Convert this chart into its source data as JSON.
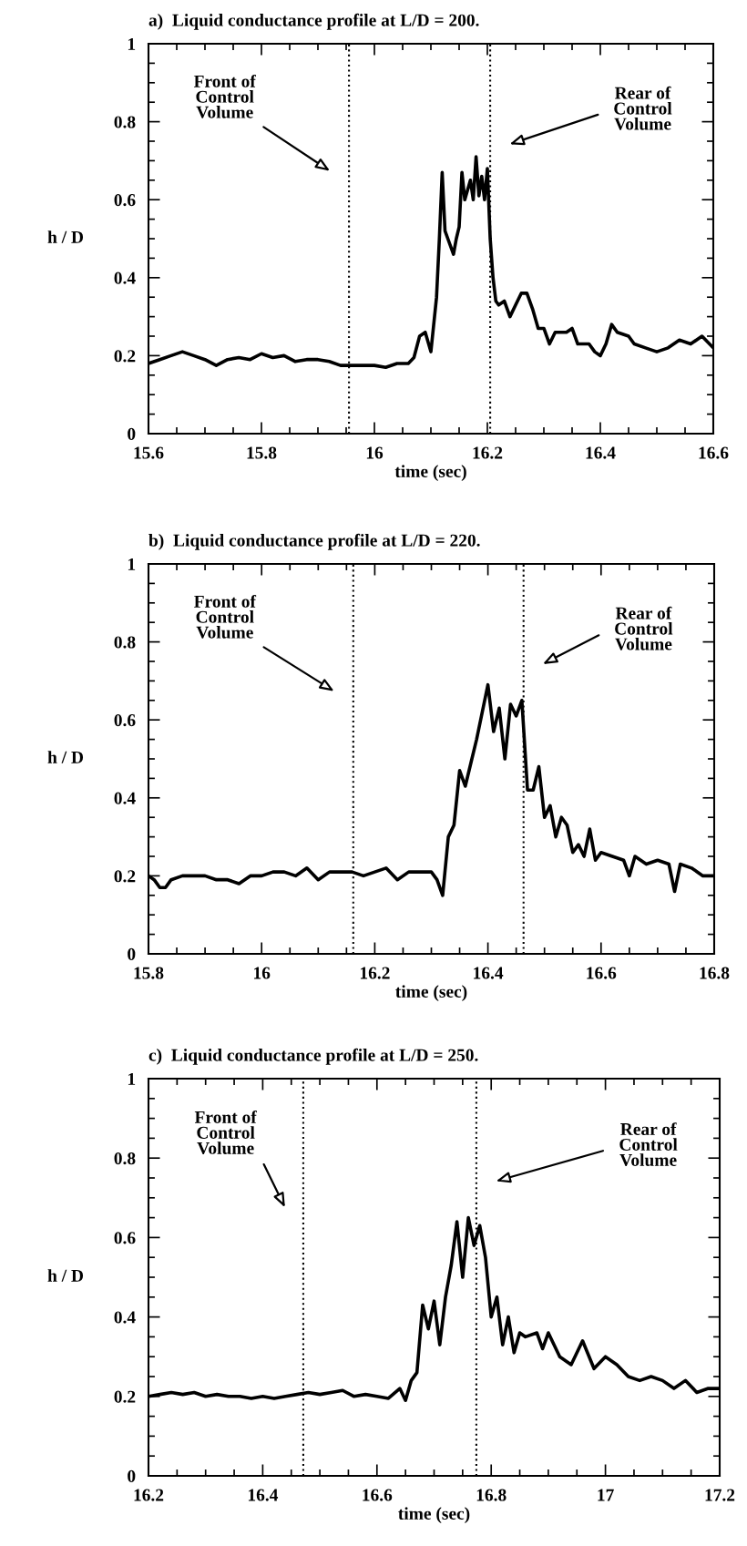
{
  "chart_data": [
    {
      "type": "line",
      "title": "a)  Liquid conductance profile at L/D = 200.",
      "xlabel": "time (sec)",
      "ylabel": "h / D",
      "xlim": [
        15.6,
        16.6
      ],
      "xticks": [
        15.6,
        15.8,
        16,
        16.2,
        16.4,
        16.6
      ],
      "ylim": [
        0,
        1
      ],
      "yticks": [
        0,
        0.2,
        0.4,
        0.6,
        0.8,
        1
      ],
      "grid": false,
      "ref_lines": [
        {
          "axis": "x",
          "value": 15.955,
          "color": "#000000",
          "line_style": "dotted"
        },
        {
          "axis": "x",
          "value": 16.205,
          "color": "#000000",
          "line_style": "dotted"
        }
      ],
      "annotations": [
        "Front of\nControl\nVolume",
        "Rear of\nControl\nVolume"
      ],
      "series": [
        {
          "color": "#000000",
          "x": [
            15.6,
            15.62,
            15.64,
            15.66,
            15.68,
            15.7,
            15.72,
            15.74,
            15.76,
            15.78,
            15.8,
            15.82,
            15.84,
            15.86,
            15.88,
            15.9,
            15.92,
            15.94,
            15.96,
            15.98,
            16.0,
            16.02,
            16.04,
            16.06,
            16.07,
            16.08,
            16.09,
            16.1,
            16.11,
            16.115,
            16.12,
            16.125,
            16.13,
            16.14,
            16.145,
            16.15,
            16.155,
            16.16,
            16.17,
            16.175,
            16.18,
            16.185,
            16.19,
            16.195,
            16.2,
            16.205,
            16.21,
            16.215,
            16.22,
            16.23,
            16.24,
            16.25,
            16.26,
            16.27,
            16.28,
            16.29,
            16.3,
            16.31,
            16.32,
            16.34,
            16.35,
            16.36,
            16.38,
            16.39,
            16.4,
            16.41,
            16.42,
            16.43,
            16.45,
            16.46,
            16.48,
            16.5,
            16.52,
            16.54,
            16.56,
            16.58,
            16.6
          ],
          "values": [
            0.18,
            0.19,
            0.2,
            0.21,
            0.2,
            0.19,
            0.175,
            0.19,
            0.195,
            0.19,
            0.205,
            0.195,
            0.2,
            0.185,
            0.19,
            0.19,
            0.185,
            0.175,
            0.175,
            0.175,
            0.175,
            0.17,
            0.18,
            0.18,
            0.195,
            0.25,
            0.26,
            0.21,
            0.35,
            0.5,
            0.67,
            0.52,
            0.5,
            0.46,
            0.5,
            0.53,
            0.67,
            0.6,
            0.65,
            0.6,
            0.71,
            0.61,
            0.66,
            0.6,
            0.68,
            0.5,
            0.4,
            0.34,
            0.33,
            0.34,
            0.3,
            0.33,
            0.36,
            0.36,
            0.32,
            0.27,
            0.27,
            0.23,
            0.26,
            0.26,
            0.27,
            0.23,
            0.23,
            0.21,
            0.2,
            0.23,
            0.28,
            0.26,
            0.25,
            0.23,
            0.22,
            0.21,
            0.22,
            0.24,
            0.23,
            0.25,
            0.22
          ]
        }
      ]
    },
    {
      "type": "line",
      "title": "b)  Liquid conductance profile at L/D = 220.",
      "xlabel": "time (sec)",
      "ylabel": "h / D",
      "xlim": [
        15.8,
        16.8
      ],
      "xticks": [
        15.8,
        16,
        16.2,
        16.4,
        16.6,
        16.8
      ],
      "ylim": [
        0,
        1
      ],
      "yticks": [
        0,
        0.2,
        0.4,
        0.6,
        0.8,
        1
      ],
      "grid": false,
      "ref_lines": [
        {
          "axis": "x",
          "value": 16.162,
          "color": "#000000",
          "line_style": "dotted"
        },
        {
          "axis": "x",
          "value": 16.463,
          "color": "#000000",
          "line_style": "dotted"
        }
      ],
      "annotations": [
        "Front of\nControl\nVolume",
        "Rear of\nControl\nVolume"
      ],
      "series": [
        {
          "color": "#000000",
          "x": [
            15.8,
            15.81,
            15.82,
            15.83,
            15.84,
            15.86,
            15.88,
            15.9,
            15.92,
            15.94,
            15.96,
            15.98,
            16.0,
            16.02,
            16.04,
            16.06,
            16.08,
            16.1,
            16.12,
            16.14,
            16.16,
            16.18,
            16.2,
            16.22,
            16.24,
            16.26,
            16.28,
            16.3,
            16.31,
            16.32,
            16.33,
            16.34,
            16.35,
            16.36,
            16.37,
            16.38,
            16.39,
            16.4,
            16.41,
            16.42,
            16.43,
            16.44,
            16.45,
            16.46,
            16.47,
            16.48,
            16.49,
            16.5,
            16.51,
            16.52,
            16.53,
            16.54,
            16.55,
            16.56,
            16.57,
            16.58,
            16.59,
            16.6,
            16.62,
            16.64,
            16.65,
            16.66,
            16.68,
            16.7,
            16.72,
            16.73,
            16.74,
            16.76,
            16.78,
            16.8
          ],
          "values": [
            0.2,
            0.19,
            0.17,
            0.17,
            0.19,
            0.2,
            0.2,
            0.2,
            0.19,
            0.19,
            0.18,
            0.2,
            0.2,
            0.21,
            0.21,
            0.2,
            0.22,
            0.19,
            0.21,
            0.21,
            0.21,
            0.2,
            0.21,
            0.22,
            0.19,
            0.21,
            0.21,
            0.21,
            0.19,
            0.15,
            0.3,
            0.33,
            0.47,
            0.43,
            0.49,
            0.55,
            0.62,
            0.69,
            0.57,
            0.63,
            0.5,
            0.64,
            0.61,
            0.65,
            0.42,
            0.42,
            0.48,
            0.35,
            0.38,
            0.3,
            0.35,
            0.33,
            0.26,
            0.28,
            0.25,
            0.32,
            0.24,
            0.26,
            0.25,
            0.24,
            0.2,
            0.25,
            0.23,
            0.24,
            0.23,
            0.16,
            0.23,
            0.22,
            0.2,
            0.2
          ]
        }
      ]
    },
    {
      "type": "line",
      "title": "c)  Liquid conductance profile at L/D = 250.",
      "xlabel": "time (sec)",
      "ylabel": "h / D",
      "xlim": [
        16.2,
        17.2
      ],
      "xticks": [
        16.2,
        16.4,
        16.6,
        16.8,
        17,
        17.2
      ],
      "ylim": [
        0,
        1
      ],
      "yticks": [
        0,
        0.2,
        0.4,
        0.6,
        0.8,
        1
      ],
      "grid": false,
      "ref_lines": [
        {
          "axis": "x",
          "value": 16.471,
          "color": "#000000",
          "line_style": "dotted"
        },
        {
          "axis": "x",
          "value": 16.774,
          "color": "#000000",
          "line_style": "dotted"
        }
      ],
      "annotations": [
        "Front of\nControl\nVolume",
        "Rear of\nControl\nVolume"
      ],
      "series": [
        {
          "color": "#000000",
          "x": [
            16.2,
            16.22,
            16.24,
            16.26,
            16.28,
            16.3,
            16.32,
            16.34,
            16.36,
            16.38,
            16.4,
            16.42,
            16.44,
            16.46,
            16.48,
            16.5,
            16.52,
            16.54,
            16.56,
            16.58,
            16.6,
            16.62,
            16.64,
            16.65,
            16.66,
            16.67,
            16.68,
            16.69,
            16.7,
            16.71,
            16.72,
            16.73,
            16.74,
            16.75,
            16.76,
            16.77,
            16.78,
            16.79,
            16.8,
            16.81,
            16.82,
            16.83,
            16.84,
            16.85,
            16.86,
            16.88,
            16.89,
            16.9,
            16.92,
            16.94,
            16.96,
            16.98,
            17.0,
            17.02,
            17.04,
            17.06,
            17.08,
            17.1,
            17.12,
            17.14,
            17.16,
            17.18,
            17.2
          ],
          "values": [
            0.2,
            0.205,
            0.21,
            0.205,
            0.21,
            0.2,
            0.205,
            0.2,
            0.2,
            0.195,
            0.2,
            0.195,
            0.2,
            0.205,
            0.21,
            0.205,
            0.21,
            0.215,
            0.2,
            0.205,
            0.2,
            0.195,
            0.22,
            0.19,
            0.24,
            0.26,
            0.43,
            0.37,
            0.44,
            0.33,
            0.45,
            0.53,
            0.64,
            0.5,
            0.65,
            0.58,
            0.63,
            0.55,
            0.4,
            0.45,
            0.33,
            0.4,
            0.31,
            0.36,
            0.35,
            0.36,
            0.32,
            0.36,
            0.3,
            0.28,
            0.34,
            0.27,
            0.3,
            0.28,
            0.25,
            0.24,
            0.25,
            0.24,
            0.22,
            0.24,
            0.21,
            0.22,
            0.22
          ]
        }
      ]
    }
  ]
}
